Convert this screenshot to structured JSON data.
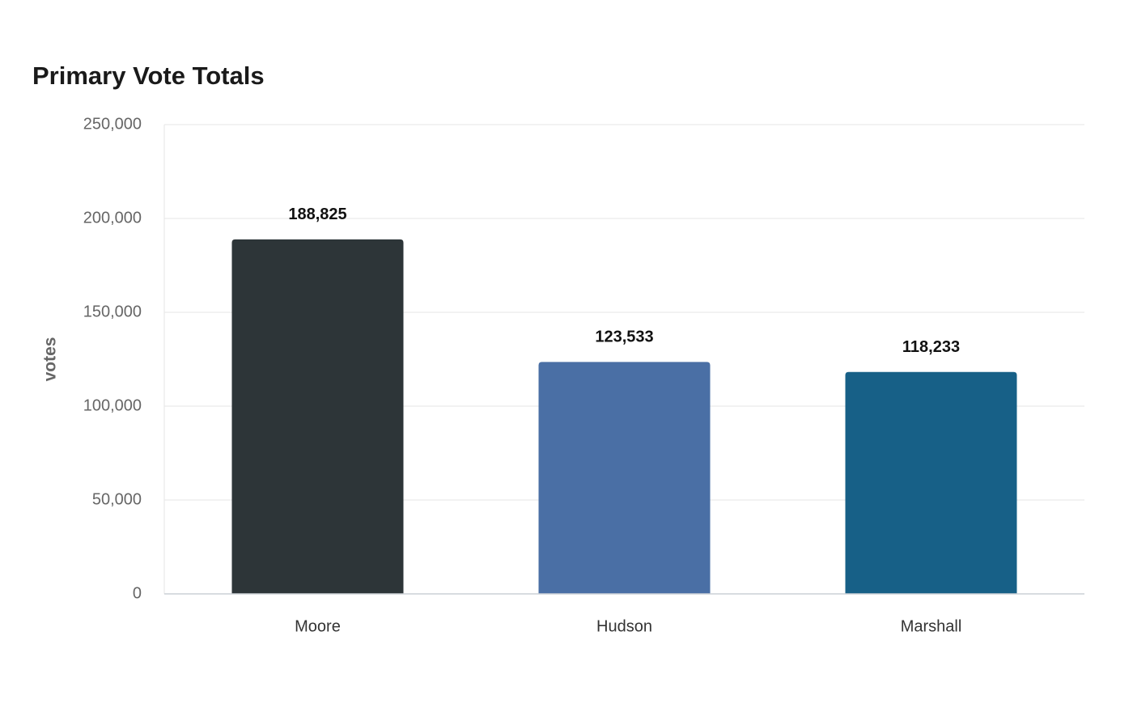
{
  "chart_data": {
    "type": "bar",
    "title": "Primary Vote Totals",
    "y_label": "votes",
    "categories": [
      "Moore",
      "Hudson",
      "Marshall"
    ],
    "values": [
      188825,
      123533,
      118233
    ],
    "value_labels": [
      "188,825",
      "123,533",
      "118,233"
    ],
    "colors": [
      "#2d3538",
      "#4a6fa5",
      "#176087"
    ],
    "ylim": [
      0,
      250000
    ],
    "yticks": [
      0,
      {
        "value": 50000,
        "label": "50,000"
      },
      {
        "value": 100000,
        "label": "100,000"
      },
      {
        "value": 150000,
        "label": "150,000"
      },
      {
        "value": 200000,
        "label": "200,000"
      },
      {
        "value": 250000,
        "label": "250,000"
      }
    ],
    "grid": true
  }
}
